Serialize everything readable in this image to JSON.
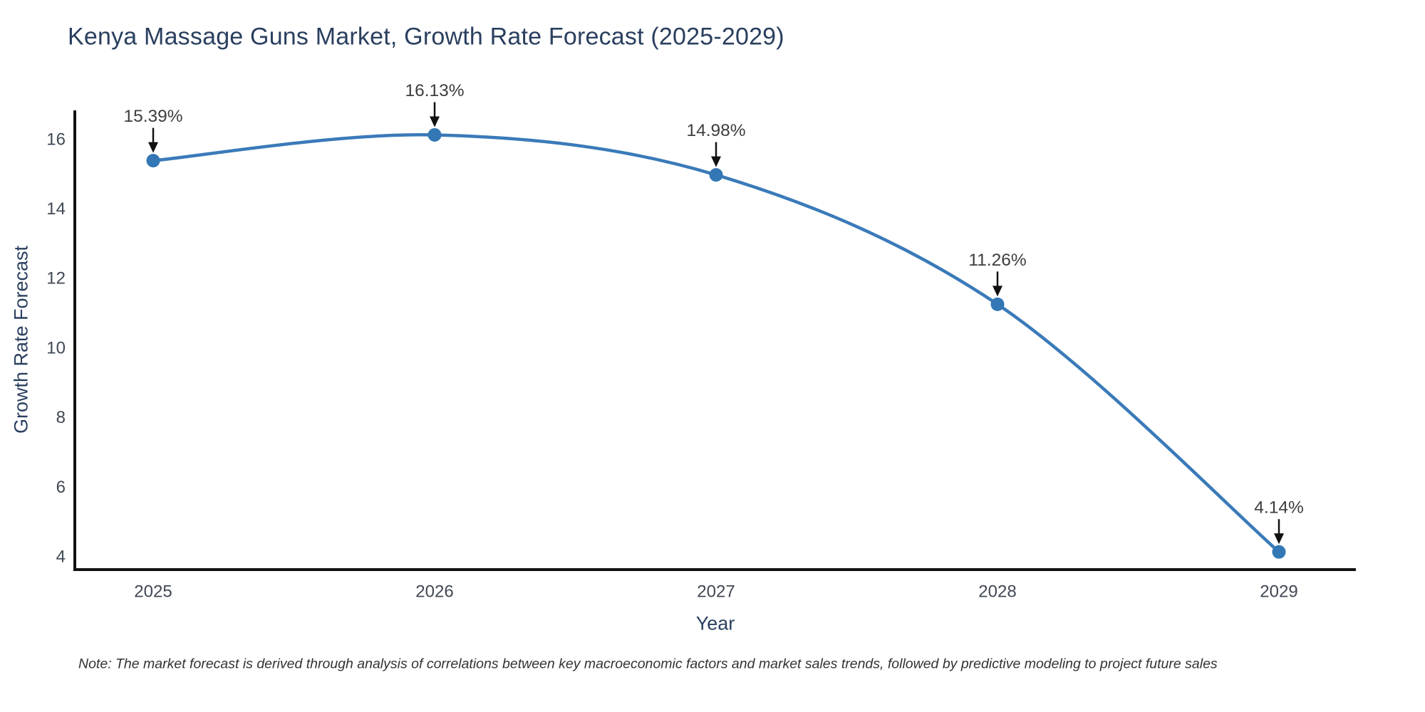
{
  "page": {
    "background": "#ffffff"
  },
  "chart_data": {
    "type": "line",
    "title": "Kenya Massage Guns Market, Growth Rate Forecast (2025-2029)",
    "xlabel": "Year",
    "ylabel": "Growth Rate Forecast",
    "x": [
      2025,
      2026,
      2027,
      2028,
      2029
    ],
    "series": [
      {
        "name": "Growth Rate Forecast",
        "values": [
          15.39,
          16.13,
          14.98,
          11.26,
          4.14
        ]
      }
    ],
    "point_labels": [
      "15.39%",
      "16.13%",
      "14.98%",
      "11.26%",
      "4.14%"
    ],
    "xticks": [
      2025,
      2026,
      2027,
      2028,
      2029
    ],
    "yticks": [
      4,
      6,
      8,
      10,
      12,
      14,
      16
    ],
    "ylim": [
      3.6,
      16.8
    ],
    "line_shape": "spline",
    "grid": false,
    "legend_position": "none",
    "colors": {
      "line": "#3a7ab9",
      "marker": "#3377b5",
      "arrow": "#111111",
      "axis": "#111111",
      "title_text": "#2a3f5f",
      "axis_title_text": "#2a3f5f",
      "tick_text": "#404854",
      "annotation_text": "#3d3d3d",
      "note_text": "#333333"
    }
  },
  "note": "Note: The market forecast is derived through analysis of correlations between key macroeconomic factors and market sales trends, followed by predictive modeling to project future sales"
}
